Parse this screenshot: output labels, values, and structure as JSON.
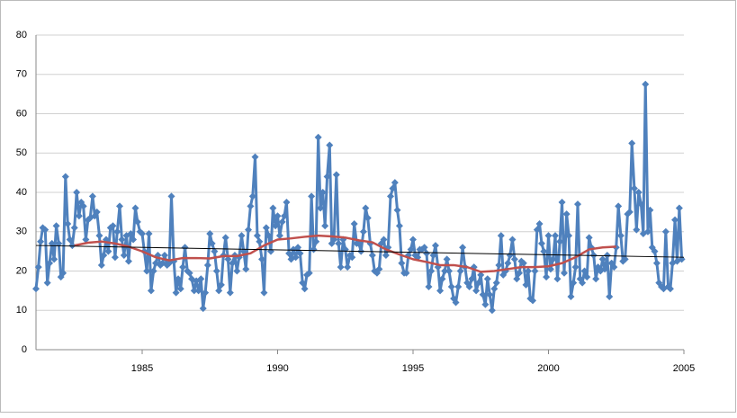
{
  "chart_data": {
    "type": "line",
    "x": [
      1981.08,
      1981.17,
      1981.25,
      1981.33,
      1981.42,
      1981.5,
      1981.58,
      1981.67,
      1981.75,
      1981.83,
      1981.92,
      1982,
      1982.08,
      1982.17,
      1982.25,
      1982.33,
      1982.42,
      1982.5,
      1982.58,
      1982.67,
      1982.75,
      1982.83,
      1982.92,
      1983,
      1983.08,
      1983.17,
      1983.25,
      1983.33,
      1983.42,
      1983.5,
      1983.58,
      1983.67,
      1983.75,
      1983.83,
      1983.92,
      1984,
      1984.08,
      1984.17,
      1984.25,
      1984.33,
      1984.42,
      1984.5,
      1984.58,
      1984.67,
      1984.75,
      1984.83,
      1984.92,
      1985,
      1985.08,
      1985.17,
      1985.25,
      1985.33,
      1985.42,
      1985.5,
      1985.58,
      1985.67,
      1985.75,
      1985.83,
      1985.92,
      1986,
      1986.08,
      1986.17,
      1986.25,
      1986.33,
      1986.42,
      1986.5,
      1986.58,
      1986.67,
      1986.75,
      1986.83,
      1986.92,
      1987,
      1987.08,
      1987.17,
      1987.25,
      1987.33,
      1987.42,
      1987.5,
      1987.58,
      1987.67,
      1987.75,
      1987.83,
      1987.92,
      1988,
      1988.08,
      1988.17,
      1988.25,
      1988.33,
      1988.42,
      1988.5,
      1988.58,
      1988.67,
      1988.75,
      1988.83,
      1988.92,
      1989,
      1989.08,
      1989.17,
      1989.25,
      1989.33,
      1989.42,
      1989.5,
      1989.58,
      1989.67,
      1989.75,
      1989.83,
      1989.92,
      1990,
      1990.08,
      1990.17,
      1990.25,
      1990.33,
      1990.42,
      1990.5,
      1990.58,
      1990.67,
      1990.75,
      1990.83,
      1990.92,
      1991,
      1991.08,
      1991.17,
      1991.25,
      1991.33,
      1991.42,
      1991.5,
      1991.58,
      1991.67,
      1991.75,
      1991.83,
      1991.92,
      1992,
      1992.08,
      1992.17,
      1992.25,
      1992.33,
      1992.42,
      1992.5,
      1992.58,
      1992.67,
      1992.75,
      1992.83,
      1992.92,
      1993,
      1993.08,
      1993.17,
      1993.25,
      1993.33,
      1993.42,
      1993.5,
      1993.58,
      1993.67,
      1993.75,
      1993.83,
      1993.92,
      1994,
      1994.08,
      1994.17,
      1994.25,
      1994.33,
      1994.42,
      1994.5,
      1994.58,
      1994.67,
      1994.75,
      1994.83,
      1994.92,
      1995,
      1995.08,
      1995.17,
      1995.25,
      1995.33,
      1995.42,
      1995.5,
      1995.58,
      1995.67,
      1995.75,
      1995.83,
      1995.92,
      1996,
      1996.08,
      1996.17,
      1996.25,
      1996.33,
      1996.42,
      1996.5,
      1996.58,
      1996.67,
      1996.75,
      1996.83,
      1996.92,
      1997,
      1997.08,
      1997.17,
      1997.25,
      1997.33,
      1997.42,
      1997.5,
      1997.58,
      1997.67,
      1997.75,
      1997.83,
      1997.92,
      1998,
      1998.08,
      1998.17,
      1998.25,
      1998.33,
      1998.42,
      1998.5,
      1998.58,
      1998.67,
      1998.75,
      1998.83,
      1998.92,
      1999,
      1999.08,
      1999.17,
      1999.25,
      1999.33,
      1999.42,
      1999.5,
      1999.58,
      1999.67,
      1999.75,
      1999.83,
      1999.92,
      2000,
      2000.08,
      2000.17,
      2000.25,
      2000.33,
      2000.42,
      2000.5,
      2000.58,
      2000.67,
      2000.75,
      2000.83,
      2000.92,
      2001,
      2001.08,
      2001.17,
      2001.25,
      2001.33,
      2001.42,
      2001.5,
      2001.58,
      2001.67,
      2001.75,
      2001.83,
      2001.92,
      2002,
      2002.08,
      2002.17,
      2002.25,
      2002.33,
      2002.42,
      2002.5,
      2002.58,
      2002.67,
      2002.75,
      2002.83,
      2002.92,
      2003,
      2003.08,
      2003.17,
      2003.25,
      2003.33,
      2003.42,
      2003.5,
      2003.58,
      2003.67,
      2003.75,
      2003.83,
      2003.92,
      2004,
      2004.08,
      2004.17,
      2004.25,
      2004.33,
      2004.42,
      2004.5,
      2004.58,
      2004.67,
      2004.75,
      2004.83,
      2004.92
    ],
    "series": [
      {
        "color": "#4f81bd",
        "marker": "diamond",
        "values": [
          15.5,
          21,
          27.5,
          31,
          30.5,
          17,
          22,
          27,
          23,
          31.5,
          27,
          18.5,
          19.5,
          44,
          32,
          28,
          26.5,
          31,
          40,
          34,
          37.5,
          36.5,
          28,
          33,
          33.5,
          39,
          34,
          35,
          29,
          21.5,
          24,
          28,
          25,
          31,
          31.5,
          23.5,
          30,
          36.5,
          28,
          24,
          29,
          22.5,
          29.5,
          28,
          36,
          32.5,
          30,
          29.5,
          25,
          20,
          29.5,
          15,
          20,
          22,
          24,
          21.5,
          22,
          24,
          21.5,
          22,
          39,
          22.5,
          14.5,
          18,
          15.5,
          21,
          26,
          20,
          19.5,
          18,
          15,
          17.5,
          15,
          18,
          10.5,
          14.5,
          21.5,
          29.5,
          27,
          25,
          20,
          15,
          16.5,
          24,
          28.5,
          23,
          14.5,
          22,
          24,
          20,
          23.5,
          29,
          25,
          20.5,
          30.5,
          36.5,
          39,
          49,
          29,
          27.5,
          23,
          14.5,
          31,
          29,
          25,
          36,
          31.5,
          34,
          29,
          32.5,
          34,
          37.5,
          24.5,
          23,
          25.5,
          23.5,
          26,
          24.5,
          17,
          15.5,
          19,
          19.5,
          39,
          25.5,
          27.5,
          54,
          36,
          40,
          31.5,
          44,
          52,
          27,
          28,
          44.5,
          27,
          21,
          28,
          25.5,
          21,
          24,
          23.5,
          32,
          27,
          27,
          25,
          30,
          36,
          33.5,
          27,
          24,
          20,
          19.5,
          20.5,
          27,
          28,
          24,
          26,
          39,
          41,
          42.5,
          35.5,
          31.5,
          22,
          19.5,
          19.5,
          24,
          25.5,
          28,
          24,
          23.5,
          25.5,
          25.5,
          26,
          24.5,
          16,
          20,
          24,
          26.5,
          21,
          15,
          18,
          20,
          23,
          20,
          16,
          13,
          12,
          16,
          20,
          26,
          21,
          17,
          16,
          18,
          21,
          15,
          17,
          19,
          14,
          11.5,
          18,
          14,
          10,
          15.5,
          17,
          21.5,
          29,
          19,
          20,
          22,
          24,
          28,
          23,
          18,
          19.5,
          22.5,
          22,
          16.5,
          20,
          13,
          12.5,
          20,
          30.5,
          32,
          27,
          25,
          18.5,
          29,
          20.5,
          23,
          29,
          18,
          27.5,
          37.5,
          19.5,
          34.5,
          29,
          13.5,
          17,
          21,
          37,
          18,
          17,
          20,
          18.5,
          28.5,
          26,
          24,
          18,
          21,
          20,
          23,
          20.5,
          24,
          13.5,
          22,
          21,
          26,
          36.5,
          29,
          22.5,
          23,
          34.5,
          35,
          52.5,
          41,
          30.5,
          40,
          37,
          29.5,
          67.5,
          30,
          35.5,
          26,
          25,
          22,
          17,
          16,
          15.5,
          30,
          16,
          15.5,
          22,
          33,
          22.5,
          36,
          23
        ]
      },
      {
        "color": "#c0504d",
        "x": [
          1982.5,
          1983,
          1983.5,
          1984,
          1984.5,
          1985,
          1985.5,
          1986,
          1986.5,
          1987,
          1987.5,
          1988,
          1988.5,
          1989,
          1989.5,
          1990,
          1990.5,
          1991,
          1991.5,
          1992,
          1992.5,
          1993,
          1993.5,
          1994,
          1994.5,
          1995,
          1995.5,
          1996,
          1996.5,
          1997,
          1997.5,
          1998,
          1998.5,
          1999,
          1999.5,
          2000,
          2000.5,
          2001,
          2001.5,
          2002,
          2002.5
        ],
        "values": [
          26.5,
          27.2,
          27.5,
          27,
          26.2,
          25,
          23.5,
          22.7,
          23.3,
          23.3,
          23.2,
          23.8,
          23.8,
          24.5,
          26.5,
          28,
          28.3,
          28.7,
          29,
          28.8,
          28.5,
          27.8,
          27.3,
          25.5,
          24.2,
          23,
          22.3,
          21.5,
          21.5,
          21,
          19.8,
          20,
          20.5,
          21,
          21,
          21.2,
          22,
          23.5,
          25.5,
          26,
          26.2
        ]
      },
      {
        "color": "#000000",
        "x": [
          1981.08,
          2005
        ],
        "values": [
          26.5,
          23.5
        ]
      }
    ],
    "xlim": [
      1981.08,
      2005
    ],
    "xticks": [
      1985,
      1990,
      1995,
      2000,
      2005
    ],
    "ylim": [
      0,
      80
    ],
    "yticks": [
      0,
      10,
      20,
      30,
      40,
      50,
      60,
      70,
      80
    ],
    "grid": true
  }
}
